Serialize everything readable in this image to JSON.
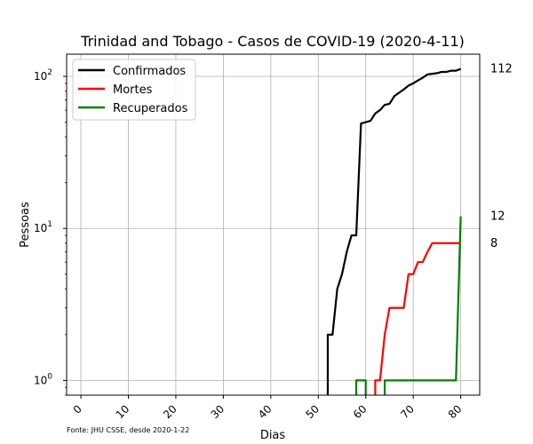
{
  "chart_data": {
    "type": "line",
    "title": "Trinidad and Tobago - Casos de COVID-19 (2020-4-11)",
    "xlabel": "Dias",
    "ylabel": "Pessoas",
    "yscale": "log",
    "xlim": [
      -3,
      84
    ],
    "ylim": [
      0.8,
      140
    ],
    "x_ticks": [
      0,
      10,
      20,
      30,
      40,
      50,
      60,
      70,
      80
    ],
    "y_ticks": [
      {
        "value": 1,
        "base": "10",
        "exp": "0"
      },
      {
        "value": 10,
        "base": "10",
        "exp": "1"
      },
      {
        "value": 100,
        "base": "10",
        "exp": "2"
      }
    ],
    "grid": true,
    "legend_position": "top-left",
    "footnote": "Fonte: JHU CSSE, desde 2020-1-22",
    "series": [
      {
        "name": "Confirmados",
        "color": "#000000",
        "end_label": "112",
        "points": [
          [
            52,
            0.1
          ],
          [
            52,
            2
          ],
          [
            53,
            2
          ],
          [
            54,
            4
          ],
          [
            55,
            5
          ],
          [
            56,
            7
          ],
          [
            57,
            9
          ],
          [
            58,
            9
          ],
          [
            59,
            49
          ],
          [
            60,
            50
          ],
          [
            61,
            51
          ],
          [
            62,
            57
          ],
          [
            63,
            60
          ],
          [
            64,
            65
          ],
          [
            65,
            66
          ],
          [
            66,
            74
          ],
          [
            67,
            78
          ],
          [
            68,
            82
          ],
          [
            69,
            87
          ],
          [
            70,
            90
          ],
          [
            71,
            94
          ],
          [
            72,
            98
          ],
          [
            73,
            103
          ],
          [
            74,
            104
          ],
          [
            75,
            105
          ],
          [
            76,
            107
          ],
          [
            77,
            107
          ],
          [
            78,
            109
          ],
          [
            79,
            109
          ],
          [
            80,
            112
          ]
        ]
      },
      {
        "name": "Mortes",
        "color": "#ff0000",
        "end_label": "8",
        "points": [
          [
            62,
            0.1
          ],
          [
            62,
            1
          ],
          [
            63,
            1
          ],
          [
            64,
            2
          ],
          [
            65,
            3
          ],
          [
            66,
            3
          ],
          [
            67,
            3
          ],
          [
            68,
            3
          ],
          [
            69,
            5
          ],
          [
            70,
            5
          ],
          [
            71,
            6
          ],
          [
            72,
            6
          ],
          [
            73,
            7
          ],
          [
            74,
            8
          ],
          [
            75,
            8
          ],
          [
            76,
            8
          ],
          [
            77,
            8
          ],
          [
            78,
            8
          ],
          [
            79,
            8
          ],
          [
            80,
            8
          ]
        ]
      },
      {
        "name": "Recuperados",
        "color": "#008000",
        "end_label": "12",
        "points": [
          [
            58,
            0.1
          ],
          [
            58,
            1
          ],
          [
            59,
            1
          ],
          [
            60,
            1
          ],
          [
            60,
            0.1
          ],
          [
            64,
            0.1
          ],
          [
            64,
            1
          ],
          [
            65,
            1
          ],
          [
            66,
            1
          ],
          [
            67,
            1
          ],
          [
            68,
            1
          ],
          [
            69,
            1
          ],
          [
            70,
            1
          ],
          [
            71,
            1
          ],
          [
            72,
            1
          ],
          [
            73,
            1
          ],
          [
            74,
            1
          ],
          [
            75,
            1
          ],
          [
            76,
            1
          ],
          [
            77,
            1
          ],
          [
            78,
            1
          ],
          [
            79,
            1
          ],
          [
            80,
            12
          ]
        ]
      }
    ]
  }
}
